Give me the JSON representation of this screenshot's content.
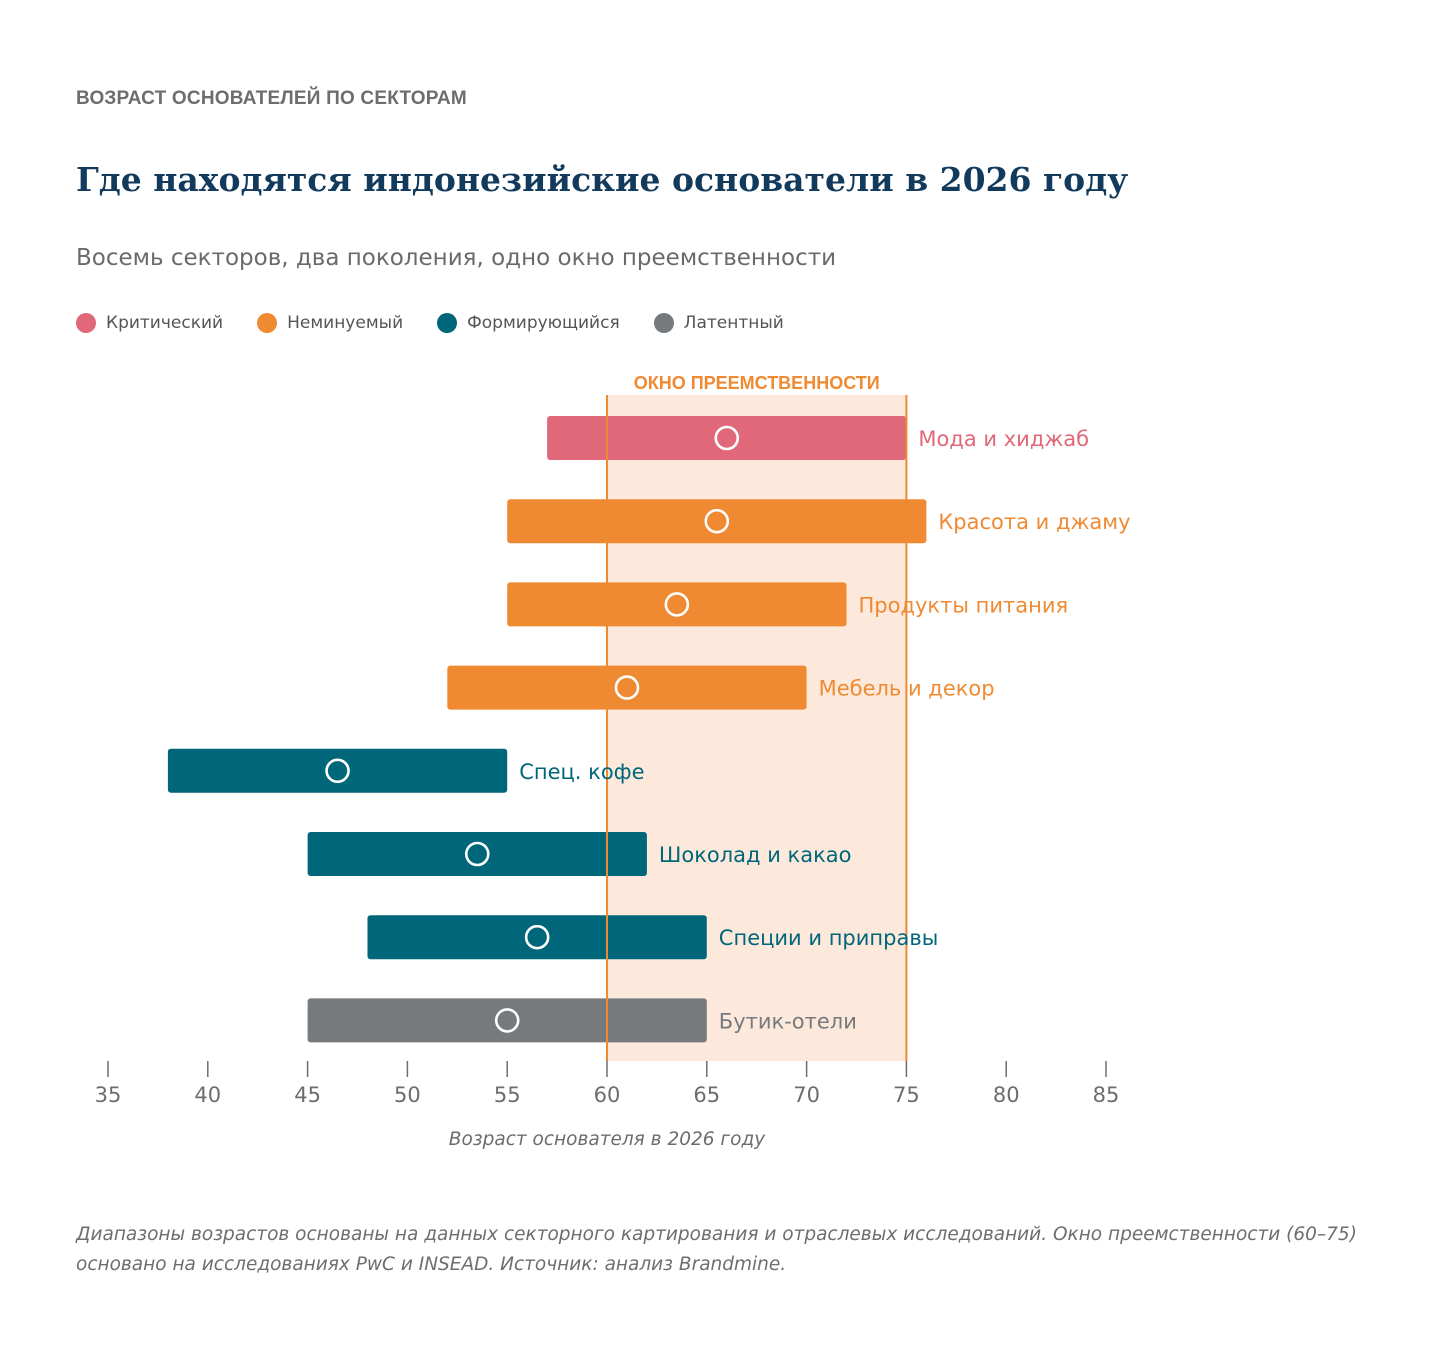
{
  "header": {
    "eyebrow": "ВОЗРАСТ ОСНОВАТЕЛЕЙ ПО СЕКТОРАМ",
    "title": "Где находятся индонезийские основатели в 2026 году",
    "subtitle": "Восемь секторов, два поколения, одно окно преемственности"
  },
  "legend": [
    {
      "label": "Критический",
      "color": "#e06878"
    },
    {
      "label": "Неминуемый",
      "color": "#ef8a33"
    },
    {
      "label": "Формирующийся",
      "color": "#00677a"
    },
    {
      "label": "Латентный",
      "color": "#767a7c"
    }
  ],
  "chart_data": {
    "type": "range-bar",
    "xlabel": "Возраст основателя в 2026 году",
    "xlim": [
      35,
      85
    ],
    "xticks": [
      35,
      40,
      45,
      50,
      55,
      60,
      65,
      70,
      75,
      80,
      85
    ],
    "window": {
      "label": "ОКНО ПРЕЕМСТВЕННОСТИ",
      "from": 60,
      "to": 75,
      "color": "#ef8a33",
      "fill": "#fde9dc"
    },
    "series": [
      {
        "name": "Мода и хиджаб",
        "group": "Критический",
        "min": 57,
        "max": 75,
        "median": 66,
        "color": "#e06878"
      },
      {
        "name": "Красота и джаму",
        "group": "Неминуемый",
        "min": 55,
        "max": 76,
        "median": 65.5,
        "color": "#ef8a33"
      },
      {
        "name": "Продукты питания",
        "group": "Неминуемый",
        "min": 55,
        "max": 72,
        "median": 63.5,
        "color": "#ef8a33"
      },
      {
        "name": "Мебель и декор",
        "group": "Неминуемый",
        "min": 52,
        "max": 70,
        "median": 61,
        "color": "#ef8a33"
      },
      {
        "name": "Спец. кофе",
        "group": "Формирующийся",
        "min": 38,
        "max": 55,
        "median": 46.5,
        "color": "#00677a"
      },
      {
        "name": "Шоколад и какао",
        "group": "Формирующийся",
        "min": 45,
        "max": 62,
        "median": 53.5,
        "color": "#00677a"
      },
      {
        "name": "Специи и приправы",
        "group": "Формирующийся",
        "min": 48,
        "max": 65,
        "median": 56.5,
        "color": "#00677a"
      },
      {
        "name": "Бутик-отели",
        "group": "Латентный",
        "min": 45,
        "max": 65,
        "median": 55,
        "color": "#767a7c"
      }
    ]
  },
  "footnote": "Диапазоны возрастов основаны на данных секторного картирования и отраслевых исследований. Окно преемственности (60–75) основано на исследованиях PwC и INSEAD. Источник: анализ Brandmine."
}
